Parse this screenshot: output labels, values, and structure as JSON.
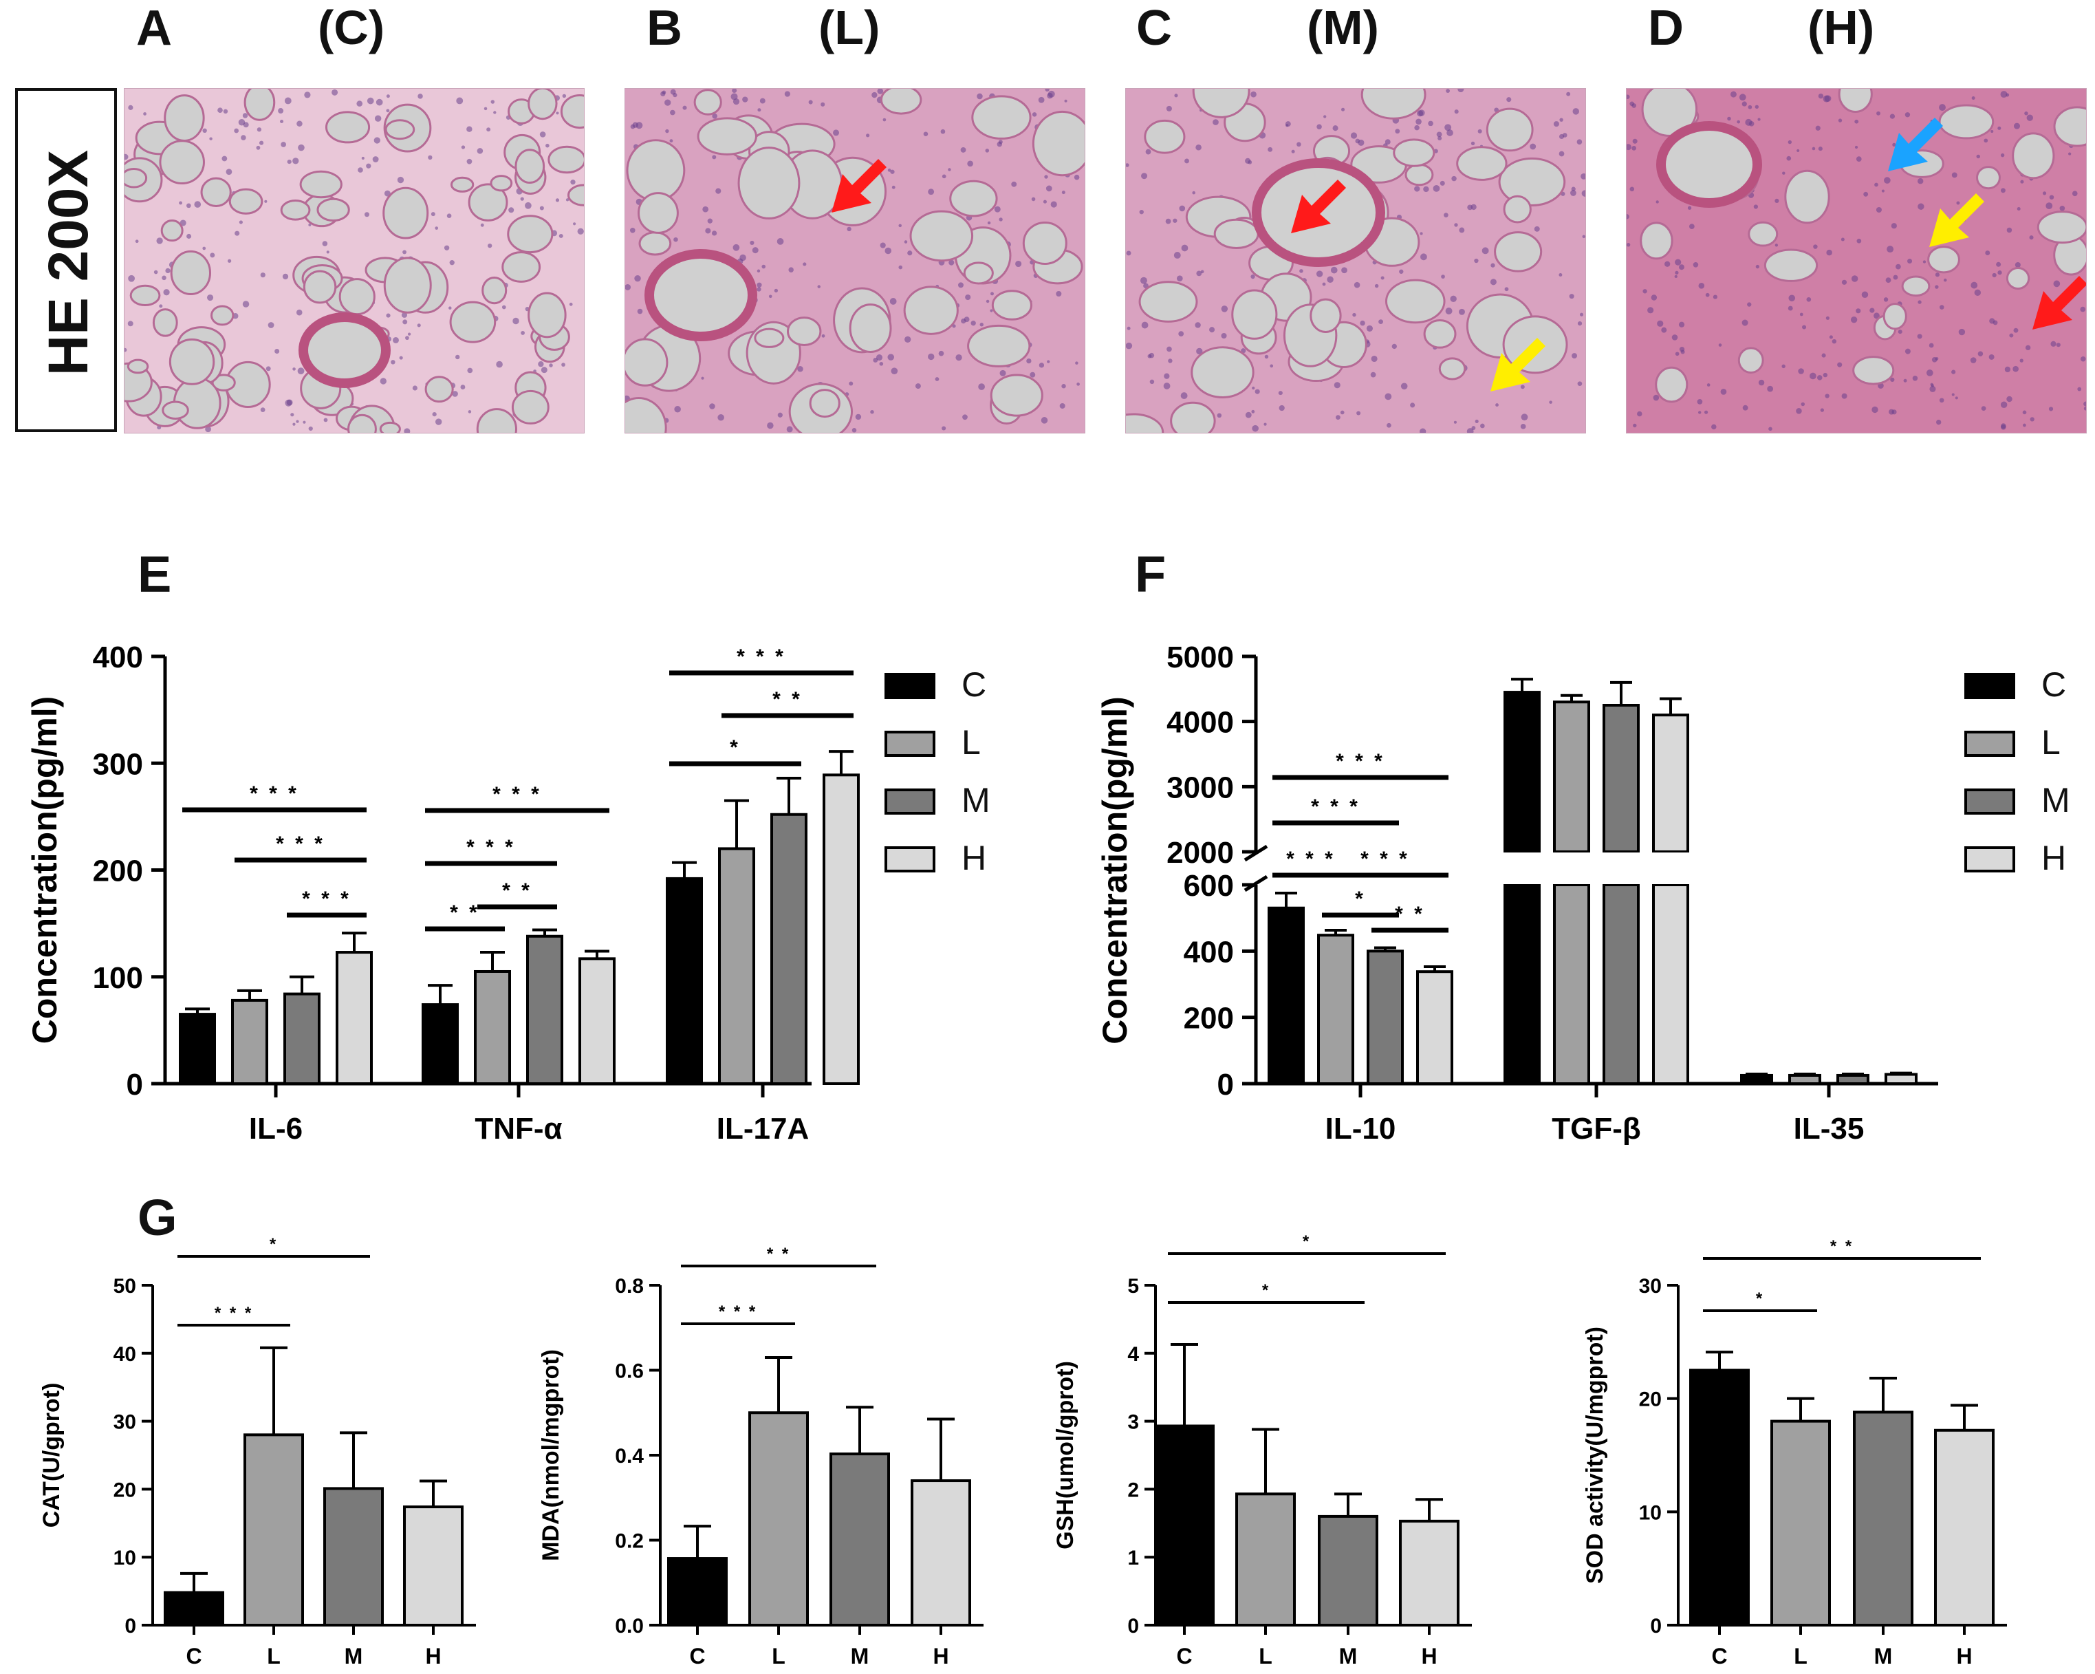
{
  "colors": {
    "C": "#000000",
    "L": "#a0a0a0",
    "M": "#7a7a7a",
    "H": "#d9d9d9"
  },
  "histology": {
    "side_label": "HE 200X",
    "panels": [
      {
        "letter": "A",
        "group": "(C)",
        "density": "low",
        "arrows": []
      },
      {
        "letter": "B",
        "group": "(L)",
        "density": "mid",
        "arrows": [
          "red"
        ]
      },
      {
        "letter": "C",
        "group": "(M)",
        "density": "mid",
        "arrows": [
          "red",
          "yellow"
        ]
      },
      {
        "letter": "D",
        "group": "(H)",
        "density": "high",
        "arrows": [
          "blue",
          "yellow",
          "red"
        ]
      }
    ]
  },
  "chart_data": [
    {
      "panel": "E",
      "type": "bar",
      "ylabel": "Concentration(pg/ml)",
      "ylim": [
        0,
        400
      ],
      "yticks": [
        "0",
        "100",
        "200",
        "300",
        "400"
      ],
      "categories": [
        "IL-6",
        "TNF-α",
        "IL-17A"
      ],
      "legend": [
        "C",
        "L",
        "M",
        "H"
      ],
      "series": [
        {
          "name": "C",
          "values": [
            65,
            74,
            192
          ],
          "errors": [
            5,
            18,
            15
          ]
        },
        {
          "name": "L",
          "values": [
            78,
            105,
            220
          ],
          "errors": [
            9,
            18,
            45
          ]
        },
        {
          "name": "M",
          "values": [
            84,
            138,
            252
          ],
          "errors": [
            16,
            6,
            34
          ]
        },
        {
          "name": "H",
          "values": [
            123,
            117,
            289
          ],
          "errors": [
            18,
            7,
            22
          ]
        }
      ],
      "significance": [
        {
          "text": "* * *",
          "group": 0,
          "from": 0,
          "to": 3
        },
        {
          "text": "* * *",
          "group": 0,
          "from": 1,
          "to": 3
        },
        {
          "text": "* * *",
          "group": 0,
          "from": 2,
          "to": 3
        },
        {
          "text": "* * *",
          "group": 1,
          "from": 0,
          "to": 3
        },
        {
          "text": "* * *",
          "group": 1,
          "from": 0,
          "to": 2
        },
        {
          "text": "* *",
          "group": 1,
          "from": 0,
          "to": 1
        },
        {
          "text": "* *",
          "group": 1,
          "from": 1,
          "to": 2
        },
        {
          "text": "* * *",
          "group": 2,
          "from": 0,
          "to": 3
        },
        {
          "text": "* *",
          "group": 2,
          "from": 1,
          "to": 3
        },
        {
          "text": "*",
          "group": 2,
          "from": 0,
          "to": 2
        }
      ]
    },
    {
      "panel": "F",
      "type": "bar",
      "ylabel": "Concentration(pg/ml)",
      "broken_axis": {
        "lower": [
          0,
          600
        ],
        "upper": [
          2000,
          5000
        ]
      },
      "yticks_lower": [
        "0",
        "200",
        "400",
        "600"
      ],
      "yticks_upper": [
        "2000",
        "3000",
        "4000",
        "5000"
      ],
      "categories": [
        "IL-10",
        "TGF-β",
        "IL-35"
      ],
      "legend": [
        "C",
        "L",
        "M",
        "H"
      ],
      "series": [
        {
          "name": "C",
          "values": [
            530,
            4450,
            25
          ],
          "errors": [
            45,
            200,
            4
          ]
        },
        {
          "name": "L",
          "values": [
            448,
            4300,
            25
          ],
          "errors": [
            15,
            100,
            4
          ]
        },
        {
          "name": "M",
          "values": [
            400,
            4250,
            25
          ],
          "errors": [
            10,
            350,
            4
          ]
        },
        {
          "name": "H",
          "values": [
            338,
            4100,
            28
          ],
          "errors": [
            15,
            250,
            4
          ]
        }
      ],
      "significance": [
        {
          "text": "* * *",
          "group": 0,
          "from": 0,
          "to": 3
        },
        {
          "text": "* * *",
          "group": 0,
          "from": 0,
          "to": 2
        },
        {
          "text": "* * *",
          "group": 0,
          "from": 0,
          "to": 1
        },
        {
          "text": "* * *",
          "group": 0,
          "from": 1,
          "to": 3
        },
        {
          "text": "*",
          "group": 0,
          "from": 1,
          "to": 2
        },
        {
          "text": "* *",
          "group": 0,
          "from": 2,
          "to": 3
        }
      ]
    },
    {
      "panel": "G",
      "type": "bar",
      "subcharts": [
        {
          "ylabel": "CAT(U/gprot)",
          "ylim": [
            0,
            50
          ],
          "yticks": [
            "0",
            "10",
            "20",
            "30",
            "40",
            "50"
          ],
          "categories": [
            "C",
            "L",
            "M",
            "H"
          ],
          "values": [
            4.8,
            28,
            20.1,
            17.4
          ],
          "errors": [
            2.8,
            12.8,
            8.2,
            3.8
          ],
          "significance": [
            {
              "text": "* * *",
              "from": 0,
              "to": 1
            },
            {
              "text": "*",
              "from": 0,
              "to": 2
            }
          ]
        },
        {
          "ylabel": "MDA(nmol/mgprot)",
          "ylim": [
            0,
            0.8
          ],
          "yticks": [
            "0.0",
            "0.2",
            "0.4",
            "0.6",
            "0.8"
          ],
          "categories": [
            "C",
            "L",
            "M",
            "H"
          ],
          "values": [
            0.157,
            0.5,
            0.403,
            0.34
          ],
          "errors": [
            0.076,
            0.13,
            0.11,
            0.145
          ],
          "significance": [
            {
              "text": "* * *",
              "from": 0,
              "to": 1
            },
            {
              "text": "* *",
              "from": 0,
              "to": 2
            }
          ]
        },
        {
          "ylabel": "GSH(umol/gprot)",
          "ylim": [
            0,
            5
          ],
          "yticks": [
            "0",
            "1",
            "2",
            "3",
            "4",
            "5"
          ],
          "categories": [
            "C",
            "L",
            "M",
            "H"
          ],
          "values": [
            2.93,
            1.93,
            1.6,
            1.53
          ],
          "errors": [
            1.2,
            0.95,
            0.33,
            0.32
          ],
          "significance": [
            {
              "text": "*",
              "from": 0,
              "to": 2
            },
            {
              "text": "*",
              "from": 0,
              "to": 3
            }
          ]
        },
        {
          "ylabel": "SOD activity(U/mgprot)",
          "ylim": [
            0,
            30
          ],
          "yticks": [
            "0",
            "10",
            "20",
            "30"
          ],
          "categories": [
            "C",
            "L",
            "M",
            "H"
          ],
          "values": [
            22.5,
            18,
            18.8,
            17.2
          ],
          "errors": [
            1.6,
            2,
            3,
            2.2
          ],
          "significance": [
            {
              "text": "*",
              "from": 0,
              "to": 1
            },
            {
              "text": "* *",
              "from": 0,
              "to": 3
            }
          ]
        }
      ]
    }
  ]
}
